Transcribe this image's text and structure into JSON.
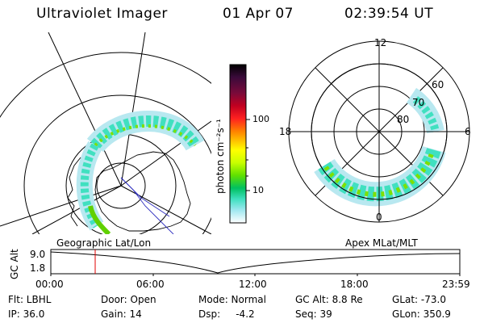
{
  "header": {
    "title": "Ultraviolet Imager",
    "date": "01 Apr 07",
    "time": "02:39:54 UT"
  },
  "colorbar": {
    "unit_label": "photon cm⁻²s⁻¹",
    "ticks": [
      "100",
      "10"
    ],
    "colors": [
      "#000000",
      "#3a0a3a",
      "#7a0a3a",
      "#c00020",
      "#ff2020",
      "#ff8000",
      "#ffc000",
      "#ffff00",
      "#c8ff00",
      "#60e000",
      "#00c060",
      "#40e0c0",
      "#a0e8f0",
      "#e0f4f8",
      "#ffffff"
    ]
  },
  "polar": {
    "mlt_labels": [
      "12",
      "18",
      "6",
      "0"
    ],
    "lat_labels": [
      "60",
      "70",
      "80"
    ]
  },
  "timeline": {
    "ylabel": "GC Alt",
    "yticks": [
      "9.0",
      "1.8"
    ],
    "left_label": "Geographic Lat/Lon",
    "right_label": "Apex MLat/MLT",
    "xticks": [
      "00:00",
      "06:00",
      "12:00",
      "18:00",
      "23:59"
    ]
  },
  "status": {
    "flt": "Flt: LBHL",
    "door": "Door: Open",
    "mode": "Mode: Normal",
    "gc_alt": "GC Alt: 8.8 Re",
    "glat": "GLat: -73.0",
    "ip": "IP: 36.0",
    "gain": "Gain: 14",
    "dsp": "Dsp:     -4.2",
    "seq": "Seq: 39",
    "glon": "GLon: 350.9"
  }
}
